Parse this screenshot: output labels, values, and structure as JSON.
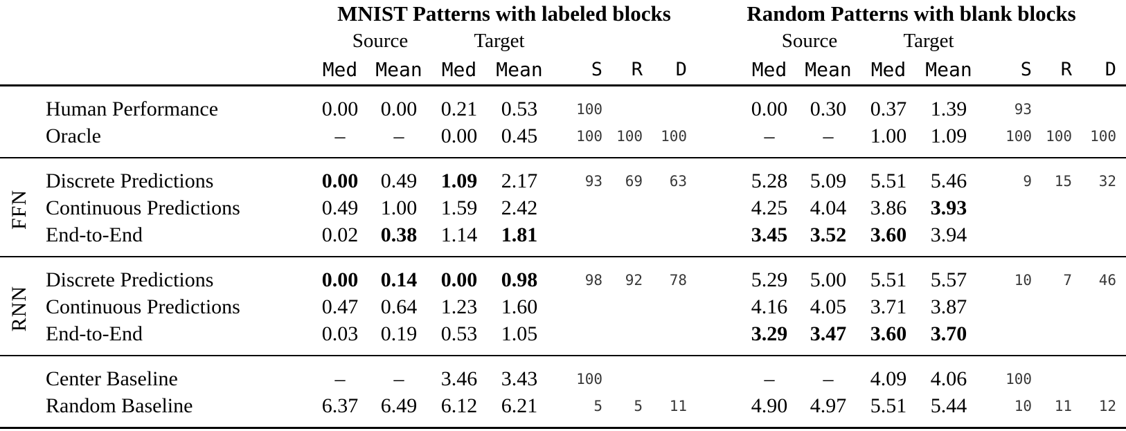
{
  "page": {
    "background_color": "#ffffff",
    "text_color": "#000000",
    "srd_text_color": "#383838"
  },
  "table": {
    "blocks": [
      {
        "title": "MNIST Patterns with labeled blocks"
      },
      {
        "title": "Random Patterns with blank blocks"
      }
    ],
    "subheaders": {
      "source": "Source",
      "target": "Target"
    },
    "columns": {
      "med": "Med",
      "mean": "Mean",
      "s": "S",
      "r": "R",
      "d": "D"
    },
    "sections": [
      {
        "group": null,
        "rows": [
          {
            "label": "Human Performance",
            "left": {
              "values": [
                "0.00",
                "0.00",
                "0.21",
                "0.53"
              ],
              "bold": [
                false,
                false,
                false,
                false
              ],
              "srd": [
                "100",
                "",
                ""
              ]
            },
            "right": {
              "values": [
                "0.00",
                "0.30",
                "0.37",
                "1.39"
              ],
              "bold": [
                false,
                false,
                false,
                false
              ],
              "srd": [
                "93",
                "",
                ""
              ]
            }
          },
          {
            "label": "Oracle",
            "left": {
              "values": [
                "–",
                "–",
                "0.00",
                "0.45"
              ],
              "bold": [
                false,
                false,
                false,
                false
              ],
              "srd": [
                "100",
                "100",
                "100"
              ]
            },
            "right": {
              "values": [
                "–",
                "–",
                "1.00",
                "1.09"
              ],
              "bold": [
                false,
                false,
                false,
                false
              ],
              "srd": [
                "100",
                "100",
                "100"
              ]
            }
          }
        ]
      },
      {
        "group": "FFN",
        "rows": [
          {
            "label": "Discrete Predictions",
            "left": {
              "values": [
                "0.00",
                "0.49",
                "1.09",
                "2.17"
              ],
              "bold": [
                true,
                false,
                true,
                false
              ],
              "srd": [
                "93",
                "69",
                "63"
              ]
            },
            "right": {
              "values": [
                "5.28",
                "5.09",
                "5.51",
                "5.46"
              ],
              "bold": [
                false,
                false,
                false,
                false
              ],
              "srd": [
                "9",
                "15",
                "32"
              ]
            }
          },
          {
            "label": "Continuous Predictions",
            "left": {
              "values": [
                "0.49",
                "1.00",
                "1.59",
                "2.42"
              ],
              "bold": [
                false,
                false,
                false,
                false
              ],
              "srd": [
                "",
                "",
                ""
              ]
            },
            "right": {
              "values": [
                "4.25",
                "4.04",
                "3.86",
                "3.93"
              ],
              "bold": [
                false,
                false,
                false,
                true
              ],
              "srd": [
                "",
                "",
                ""
              ]
            }
          },
          {
            "label": "End-to-End",
            "left": {
              "values": [
                "0.02",
                "0.38",
                "1.14",
                "1.81"
              ],
              "bold": [
                false,
                true,
                false,
                true
              ],
              "srd": [
                "",
                "",
                ""
              ]
            },
            "right": {
              "values": [
                "3.45",
                "3.52",
                "3.60",
                "3.94"
              ],
              "bold": [
                true,
                true,
                true,
                false
              ],
              "srd": [
                "",
                "",
                ""
              ]
            }
          }
        ]
      },
      {
        "group": "RNN",
        "rows": [
          {
            "label": "Discrete Predictions",
            "left": {
              "values": [
                "0.00",
                "0.14",
                "0.00",
                "0.98"
              ],
              "bold": [
                true,
                true,
                true,
                true
              ],
              "srd": [
                "98",
                "92",
                "78"
              ]
            },
            "right": {
              "values": [
                "5.29",
                "5.00",
                "5.51",
                "5.57"
              ],
              "bold": [
                false,
                false,
                false,
                false
              ],
              "srd": [
                "10",
                "7",
                "46"
              ]
            }
          },
          {
            "label": "Continuous Predictions",
            "left": {
              "values": [
                "0.47",
                "0.64",
                "1.23",
                "1.60"
              ],
              "bold": [
                false,
                false,
                false,
                false
              ],
              "srd": [
                "",
                "",
                ""
              ]
            },
            "right": {
              "values": [
                "4.16",
                "4.05",
                "3.71",
                "3.87"
              ],
              "bold": [
                false,
                false,
                false,
                false
              ],
              "srd": [
                "",
                "",
                ""
              ]
            }
          },
          {
            "label": "End-to-End",
            "left": {
              "values": [
                "0.03",
                "0.19",
                "0.53",
                "1.05"
              ],
              "bold": [
                false,
                false,
                false,
                false
              ],
              "srd": [
                "",
                "",
                ""
              ]
            },
            "right": {
              "values": [
                "3.29",
                "3.47",
                "3.60",
                "3.70"
              ],
              "bold": [
                true,
                true,
                true,
                true
              ],
              "srd": [
                "",
                "",
                ""
              ]
            }
          }
        ]
      },
      {
        "group": null,
        "rows": [
          {
            "label": "Center Baseline",
            "left": {
              "values": [
                "–",
                "–",
                "3.46",
                "3.43"
              ],
              "bold": [
                false,
                false,
                false,
                false
              ],
              "srd": [
                "100",
                "",
                ""
              ]
            },
            "right": {
              "values": [
                "–",
                "–",
                "4.09",
                "4.06"
              ],
              "bold": [
                false,
                false,
                false,
                false
              ],
              "srd": [
                "100",
                "",
                ""
              ]
            }
          },
          {
            "label": "Random Baseline",
            "left": {
              "values": [
                "6.37",
                "6.49",
                "6.12",
                "6.21"
              ],
              "bold": [
                false,
                false,
                false,
                false
              ],
              "srd": [
                "5",
                "5",
                "11"
              ]
            },
            "right": {
              "values": [
                "4.90",
                "4.97",
                "5.51",
                "5.44"
              ],
              "bold": [
                false,
                false,
                false,
                false
              ],
              "srd": [
                "10",
                "11",
                "12"
              ]
            }
          }
        ]
      }
    ]
  }
}
